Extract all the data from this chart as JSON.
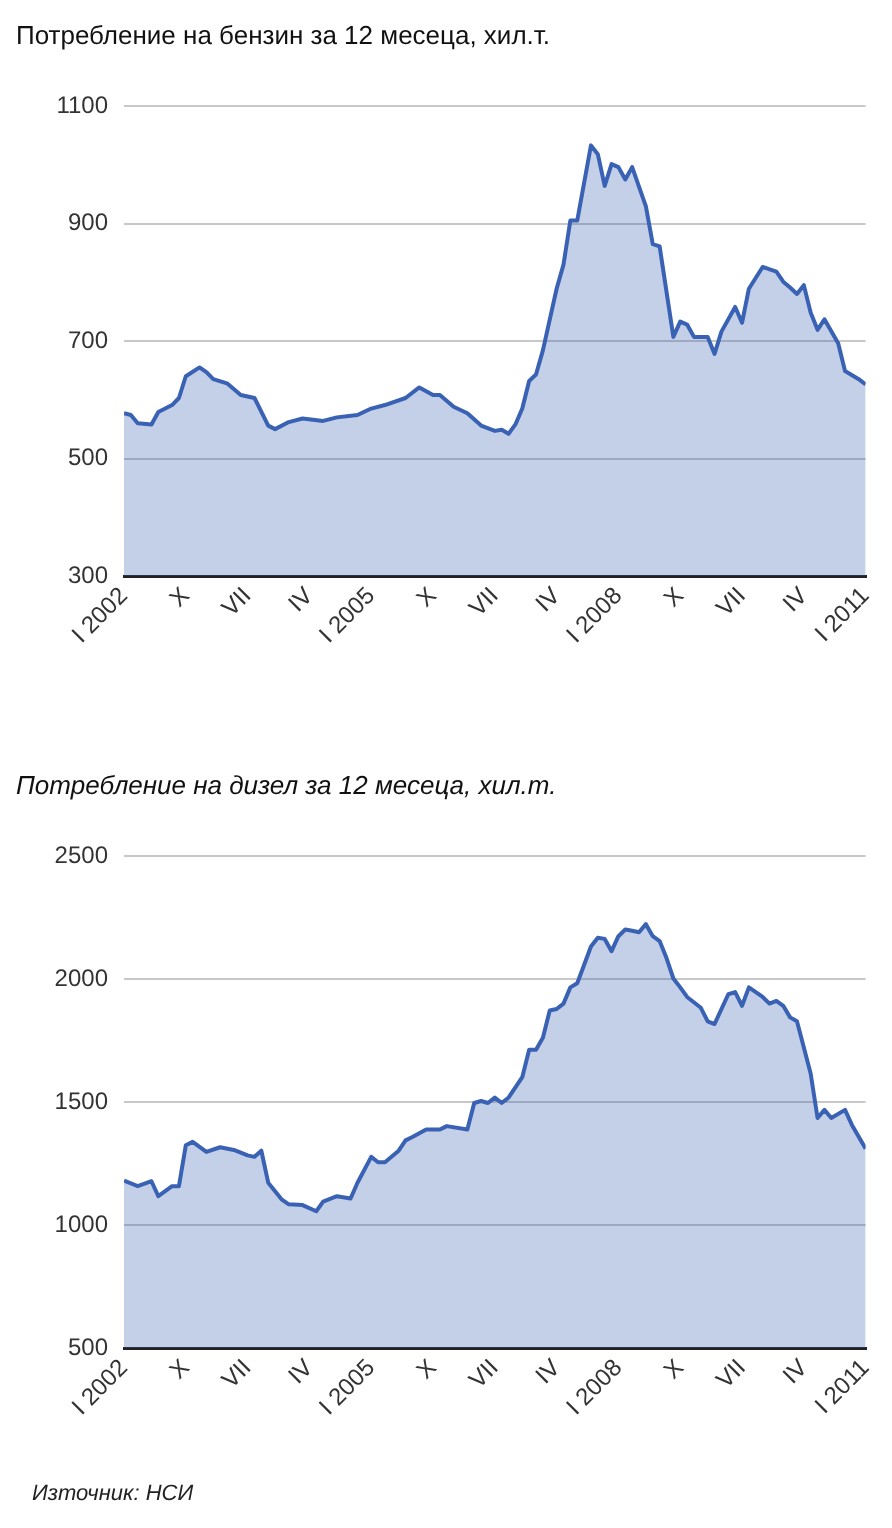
{
  "chart_data": [
    {
      "type": "area",
      "title": "Потребление на бензин за 12 месеца, хил.т.",
      "color": "#3a62b4",
      "x": [
        "2002-01",
        "2002-02",
        "2002-03",
        "2002-05",
        "2002-06",
        "2002-07",
        "2002-08",
        "2002-09",
        "2002-10",
        "2002-12",
        "2003-01",
        "2003-02",
        "2003-04",
        "2003-06",
        "2003-08",
        "2003-10",
        "2003-11",
        "2004-01",
        "2004-03",
        "2004-06",
        "2004-08",
        "2004-11",
        "2005-01",
        "2005-03",
        "2005-06",
        "2005-08",
        "2005-10",
        "2005-11",
        "2006-01",
        "2006-03",
        "2006-05",
        "2006-07",
        "2006-08",
        "2006-09",
        "2006-10",
        "2006-11",
        "2006-12",
        "2007-01",
        "2007-02",
        "2007-04",
        "2007-05",
        "2007-06",
        "2007-07",
        "2007-09",
        "2007-10",
        "2007-11",
        "2007-12",
        "2008-01",
        "2008-02",
        "2008-03",
        "2008-05",
        "2008-06",
        "2008-07",
        "2008-09",
        "2008-10",
        "2008-11",
        "2008-12",
        "2009-02",
        "2009-03",
        "2009-04",
        "2009-06",
        "2009-07",
        "2009-08",
        "2009-10",
        "2009-12",
        "2010-01",
        "2010-02",
        "2010-03",
        "2010-04",
        "2010-05",
        "2010-06",
        "2010-07",
        "2010-09",
        "2010-10",
        "2010-12",
        "2011-01"
      ],
      "values": [
        577,
        574,
        560,
        558,
        579,
        585,
        591,
        603,
        640,
        655,
        647,
        635,
        628,
        608,
        603,
        556,
        550,
        562,
        568,
        564,
        570,
        574,
        585,
        591,
        603,
        621,
        608,
        608,
        588,
        577,
        556,
        547,
        549,
        542,
        558,
        585,
        632,
        643,
        684,
        789,
        830,
        905,
        905,
        1033,
        1018,
        964,
        1001,
        996,
        975,
        996,
        929,
        865,
        861,
        707,
        733,
        728,
        707,
        707,
        678,
        716,
        758,
        731,
        789,
        826,
        818,
        801,
        791,
        780,
        795,
        748,
        719,
        737,
        696,
        649,
        635,
        626
      ],
      "xlim": [
        "2002-01",
        "2011-01"
      ],
      "xticks": [
        {
          "value": "2002-01",
          "label": "I 2002"
        },
        {
          "value": "2002-10",
          "label": "X"
        },
        {
          "value": "2003-07",
          "label": "VII"
        },
        {
          "value": "2004-04",
          "label": "IV"
        },
        {
          "value": "2005-01",
          "label": "I 2005"
        },
        {
          "value": "2005-10",
          "label": "X"
        },
        {
          "value": "2006-07",
          "label": "VII"
        },
        {
          "value": "2007-04",
          "label": "IV"
        },
        {
          "value": "2008-01",
          "label": "I 2008"
        },
        {
          "value": "2008-10",
          "label": "X"
        },
        {
          "value": "2009-07",
          "label": "VII"
        },
        {
          "value": "2010-04",
          "label": "IV"
        },
        {
          "value": "2011-01",
          "label": "I 2011"
        }
      ],
      "ylim": [
        300,
        1100
      ],
      "yticks": [
        300,
        500,
        700,
        900,
        1100
      ],
      "grid": "y"
    },
    {
      "type": "area",
      "title": "Потребление на дизел за 12 месеца, хил.т.",
      "color": "#3a62b4",
      "x": [
        "2002-01",
        "2002-03",
        "2002-05",
        "2002-06",
        "2002-08",
        "2002-09",
        "2002-10",
        "2002-11",
        "2003-01",
        "2003-03",
        "2003-05",
        "2003-07",
        "2003-08",
        "2003-09",
        "2003-10",
        "2003-12",
        "2004-01",
        "2004-03",
        "2004-05",
        "2004-06",
        "2004-08",
        "2004-10",
        "2004-11",
        "2005-01",
        "2005-02",
        "2005-03",
        "2005-05",
        "2005-06",
        "2005-07",
        "2005-09",
        "2005-11",
        "2005-12",
        "2006-03",
        "2006-04",
        "2006-05",
        "2006-06",
        "2006-07",
        "2006-08",
        "2006-09",
        "2006-11",
        "2006-12",
        "2007-01",
        "2007-02",
        "2007-03",
        "2007-04",
        "2007-05",
        "2007-06",
        "2007-07",
        "2007-08",
        "2007-09",
        "2007-10",
        "2007-11",
        "2007-12",
        "2008-01",
        "2008-02",
        "2008-03",
        "2008-04",
        "2008-05",
        "2008-06",
        "2008-07",
        "2008-08",
        "2008-09",
        "2008-10",
        "2008-11",
        "2009-01",
        "2009-02",
        "2009-03",
        "2009-05",
        "2009-06",
        "2009-07",
        "2009-08",
        "2009-10",
        "2009-11",
        "2009-12",
        "2010-01",
        "2010-02",
        "2010-03",
        "2010-05",
        "2010-06",
        "2010-07",
        "2010-08",
        "2010-10",
        "2010-11",
        "2011-01"
      ],
      "values": [
        1180,
        1158,
        1178,
        1117,
        1158,
        1158,
        1324,
        1338,
        1297,
        1316,
        1305,
        1283,
        1277,
        1302,
        1172,
        1103,
        1084,
        1081,
        1056,
        1095,
        1117,
        1108,
        1172,
        1277,
        1255,
        1255,
        1302,
        1344,
        1358,
        1388,
        1388,
        1402,
        1388,
        1496,
        1504,
        1496,
        1518,
        1496,
        1518,
        1601,
        1712,
        1712,
        1761,
        1872,
        1878,
        1900,
        1966,
        1983,
        2057,
        2132,
        2168,
        2163,
        2113,
        2174,
        2201,
        2196,
        2190,
        2223,
        2174,
        2154,
        2085,
        2002,
        1966,
        1927,
        1883,
        1828,
        1817,
        1938,
        1947,
        1891,
        1966,
        1927,
        1900,
        1911,
        1891,
        1844,
        1828,
        1615,
        1435,
        1468,
        1435,
        1468,
        1407,
        1310
      ],
      "xlim": [
        "2002-01",
        "2011-01"
      ],
      "xticks": [
        {
          "value": "2002-01",
          "label": "I 2002"
        },
        {
          "value": "2002-10",
          "label": "X"
        },
        {
          "value": "2003-07",
          "label": "VII"
        },
        {
          "value": "2004-04",
          "label": "IV"
        },
        {
          "value": "2005-01",
          "label": "I 2005"
        },
        {
          "value": "2005-10",
          "label": "X"
        },
        {
          "value": "2006-07",
          "label": "VII"
        },
        {
          "value": "2007-04",
          "label": "IV"
        },
        {
          "value": "2008-01",
          "label": "I 2008"
        },
        {
          "value": "2008-10",
          "label": "X"
        },
        {
          "value": "2009-07",
          "label": "VII"
        },
        {
          "value": "2010-04",
          "label": "IV"
        },
        {
          "value": "2011-01",
          "label": "I 2011"
        }
      ],
      "ylim": [
        500,
        2500
      ],
      "yticks": [
        500,
        1000,
        1500,
        2000,
        2500
      ],
      "grid": "y",
      "annotations": [
        "Източник: НСИ"
      ]
    }
  ]
}
